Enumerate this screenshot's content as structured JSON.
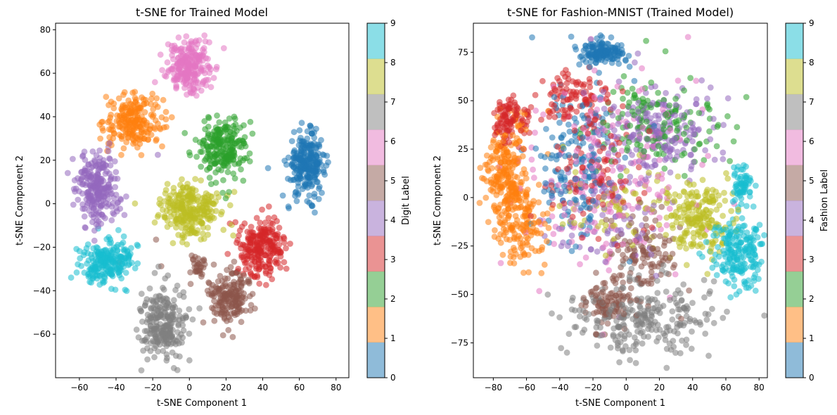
{
  "colors": {
    "tab10": [
      "#1f77b4",
      "#ff7f0e",
      "#2ca02c",
      "#d62728",
      "#9467bd",
      "#8c564b",
      "#e377c2",
      "#7f7f7f",
      "#bcbd22",
      "#17becf"
    ]
  },
  "chart_data": [
    {
      "type": "scatter",
      "title": "t-SNE for Trained Model",
      "xlabel": "t-SNE Component 1",
      "ylabel": "t-SNE Component 2",
      "xlim": [
        -73,
        87
      ],
      "ylim": [
        -80,
        83
      ],
      "xticks": [
        -60,
        -40,
        -20,
        0,
        20,
        40,
        60,
        80
      ],
      "yticks": [
        -60,
        -40,
        -20,
        0,
        20,
        40,
        60,
        80
      ],
      "colorbar": {
        "label": "Digit Label",
        "ticks": [
          0,
          1,
          2,
          3,
          4,
          5,
          6,
          7,
          8,
          9
        ],
        "range": [
          0,
          9
        ]
      },
      "clusters": [
        {
          "label": 0,
          "center": [
            64,
            18
          ],
          "spread": [
            5,
            7
          ],
          "points": 260
        },
        {
          "label": 1,
          "center": [
            -30,
            38
          ],
          "spread": [
            8,
            6
          ],
          "points": 220
        },
        {
          "label": 2,
          "center": [
            18,
            26
          ],
          "spread": [
            7,
            7
          ],
          "points": 230
        },
        {
          "label": 3,
          "center": [
            40,
            -20
          ],
          "spread": [
            6,
            7
          ],
          "points": 240
        },
        {
          "label": 4,
          "center": [
            -50,
            7
          ],
          "spread": [
            6,
            8
          ],
          "points": 250
        },
        {
          "label": 5,
          "center": [
            22,
            -42
          ],
          "spread": [
            6,
            6
          ],
          "points": 180
        },
        {
          "label": 5,
          "center": [
            5,
            -29
          ],
          "spread": [
            3,
            3
          ],
          "points": 30
        },
        {
          "label": 6,
          "center": [
            0,
            63
          ],
          "spread": [
            6,
            6
          ],
          "points": 240
        },
        {
          "label": 7,
          "center": [
            -15,
            -55
          ],
          "spread": [
            6,
            8
          ],
          "points": 240
        },
        {
          "label": 8,
          "center": [
            0,
            -3
          ],
          "spread": [
            8,
            6
          ],
          "points": 260
        },
        {
          "label": 9,
          "center": [
            -45,
            -27
          ],
          "spread": [
            7,
            5
          ],
          "points": 220
        }
      ]
    },
    {
      "type": "scatter",
      "title": "t-SNE for Fashion-MNIST (Trained Model)",
      "xlabel": "t-SNE Component 1",
      "ylabel": "t-SNE Component 2",
      "xlim": [
        -92,
        85
      ],
      "ylim": [
        -93,
        90
      ],
      "xticks": [
        -80,
        -60,
        -40,
        -20,
        0,
        20,
        40,
        60,
        80
      ],
      "yticks": [
        -75,
        -50,
        -25,
        0,
        25,
        50,
        75
      ],
      "colorbar": {
        "label": "Fashion Label",
        "ticks": [
          0,
          1,
          2,
          3,
          4,
          5,
          6,
          7,
          8,
          9
        ],
        "range": [
          0,
          9
        ]
      },
      "clusters": [
        {
          "label": 0,
          "center": [
            -15,
            75
          ],
          "spread": [
            7,
            3
          ],
          "points": 150
        },
        {
          "label": 0,
          "center": [
            -30,
            20
          ],
          "spread": [
            12,
            20
          ],
          "points": 160
        },
        {
          "label": 1,
          "center": [
            -72,
            10
          ],
          "spread": [
            6,
            16
          ],
          "points": 260
        },
        {
          "label": 1,
          "center": [
            -60,
            -15
          ],
          "spread": [
            8,
            10
          ],
          "points": 100
        },
        {
          "label": 2,
          "center": [
            20,
            38
          ],
          "spread": [
            18,
            12
          ],
          "points": 150
        },
        {
          "label": 3,
          "center": [
            -70,
            40
          ],
          "spread": [
            5,
            6
          ],
          "points": 100
        },
        {
          "label": 3,
          "center": [
            -30,
            50
          ],
          "spread": [
            10,
            8
          ],
          "points": 110
        },
        {
          "label": 3,
          "center": [
            -20,
            10
          ],
          "spread": [
            15,
            15
          ],
          "points": 90
        },
        {
          "label": 4,
          "center": [
            15,
            35
          ],
          "spread": [
            18,
            12
          ],
          "points": 220
        },
        {
          "label": 4,
          "center": [
            -15,
            -10
          ],
          "spread": [
            20,
            15
          ],
          "points": 80
        },
        {
          "label": 5,
          "center": [
            10,
            -30
          ],
          "spread": [
            10,
            10
          ],
          "points": 120
        },
        {
          "label": 5,
          "center": [
            -12,
            -55
          ],
          "spread": [
            6,
            6
          ],
          "points": 90
        },
        {
          "label": 6,
          "center": [
            -10,
            10
          ],
          "spread": [
            25,
            25
          ],
          "points": 200
        },
        {
          "label": 7,
          "center": [
            10,
            -62
          ],
          "spread": [
            20,
            10
          ],
          "points": 260
        },
        {
          "label": 8,
          "center": [
            45,
            -10
          ],
          "spread": [
            8,
            10
          ],
          "points": 180
        },
        {
          "label": 8,
          "center": [
            0,
            -5
          ],
          "spread": [
            20,
            10
          ],
          "points": 80
        },
        {
          "label": 9,
          "center": [
            68,
            -28
          ],
          "spread": [
            8,
            9
          ],
          "points": 200
        },
        {
          "label": 9,
          "center": [
            70,
            7
          ],
          "spread": [
            3,
            5
          ],
          "points": 60
        }
      ]
    }
  ]
}
